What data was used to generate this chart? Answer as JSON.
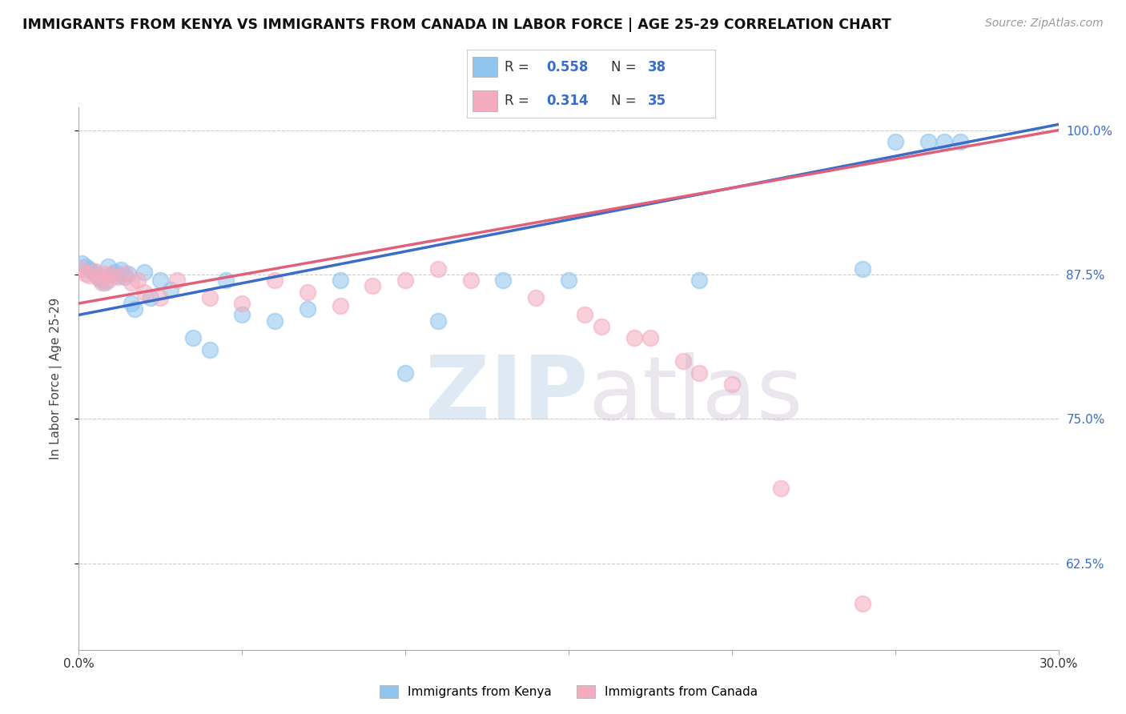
{
  "title": "IMMIGRANTS FROM KENYA VS IMMIGRANTS FROM CANADA IN LABOR FORCE | AGE 25-29 CORRELATION CHART",
  "source": "Source: ZipAtlas.com",
  "ylabel": "In Labor Force | Age 25-29",
  "legend_label_blue": "Immigrants from Kenya",
  "legend_label_pink": "Immigrants from Canada",
  "R_blue": 0.558,
  "N_blue": 38,
  "R_pink": 0.314,
  "N_pink": 35,
  "xlim": [
    0.0,
    0.3
  ],
  "ylim": [
    0.55,
    1.02
  ],
  "xticks": [
    0.0,
    0.05,
    0.1,
    0.15,
    0.2,
    0.25,
    0.3
  ],
  "xticklabels": [
    "0.0%",
    "",
    "",
    "",
    "",
    "",
    "30.0%"
  ],
  "yticks": [
    0.625,
    0.75,
    0.875,
    1.0
  ],
  "yticklabels": [
    "62.5%",
    "75.0%",
    "87.5%",
    "100.0%"
  ],
  "color_blue": "#8EC4EE",
  "color_pink": "#F4ABBE",
  "line_color_blue": "#3B6CC8",
  "line_color_pink": "#E0607A",
  "blue_scatter_x": [
    0.001,
    0.002,
    0.003,
    0.004,
    0.005,
    0.006,
    0.007,
    0.008,
    0.009,
    0.01,
    0.011,
    0.012,
    0.013,
    0.014,
    0.015,
    0.016,
    0.017,
    0.02,
    0.022,
    0.025,
    0.028,
    0.035,
    0.04,
    0.045,
    0.05,
    0.06,
    0.07,
    0.08,
    0.1,
    0.11,
    0.13,
    0.15,
    0.19,
    0.24,
    0.25,
    0.26,
    0.265,
    0.27
  ],
  "blue_scatter_y": [
    0.885,
    0.882,
    0.88,
    0.878,
    0.876,
    0.872,
    0.87,
    0.868,
    0.882,
    0.875,
    0.877,
    0.874,
    0.879,
    0.873,
    0.876,
    0.85,
    0.845,
    0.877,
    0.855,
    0.87,
    0.862,
    0.82,
    0.81,
    0.87,
    0.84,
    0.835,
    0.845,
    0.87,
    0.79,
    0.835,
    0.87,
    0.87,
    0.87,
    0.88,
    0.99,
    0.99,
    0.99,
    0.99
  ],
  "pink_scatter_x": [
    0.001,
    0.002,
    0.003,
    0.005,
    0.006,
    0.007,
    0.008,
    0.009,
    0.01,
    0.012,
    0.014,
    0.016,
    0.018,
    0.02,
    0.025,
    0.03,
    0.04,
    0.05,
    0.06,
    0.07,
    0.08,
    0.09,
    0.1,
    0.11,
    0.12,
    0.14,
    0.155,
    0.16,
    0.17,
    0.175,
    0.185,
    0.19,
    0.2,
    0.215,
    0.24
  ],
  "pink_scatter_y": [
    0.88,
    0.876,
    0.874,
    0.878,
    0.872,
    0.868,
    0.876,
    0.87,
    0.875,
    0.873,
    0.876,
    0.868,
    0.87,
    0.86,
    0.855,
    0.87,
    0.855,
    0.85,
    0.87,
    0.86,
    0.848,
    0.865,
    0.87,
    0.88,
    0.87,
    0.855,
    0.84,
    0.83,
    0.82,
    0.82,
    0.8,
    0.79,
    0.78,
    0.69,
    0.59
  ],
  "blue_line_x0": 0.0,
  "blue_line_y0": 0.84,
  "blue_line_x1": 0.3,
  "blue_line_y1": 1.005,
  "pink_line_x0": 0.0,
  "pink_line_y0": 0.85,
  "pink_line_x1": 0.3,
  "pink_line_y1": 1.0
}
